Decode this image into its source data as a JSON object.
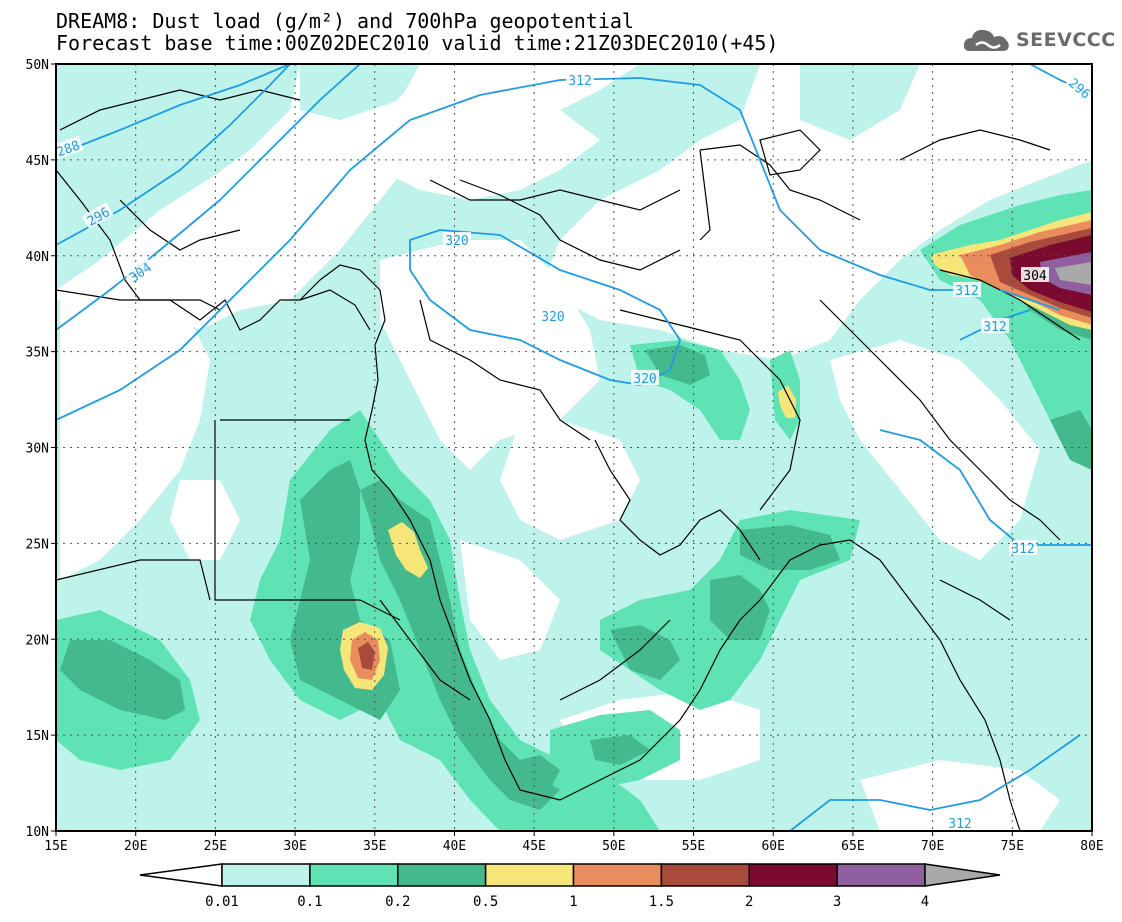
{
  "header": {
    "title_line1": "DREAM8: Dust load (g/m²) and 700hPa geopotential",
    "title_line2": "Forecast base time:00Z02DEC2010 valid time:21Z03DEC2010(+45)"
  },
  "logo": {
    "text": "SEEVCCC",
    "icon": "cloud-icon"
  },
  "map": {
    "lat_ticks": [
      "50N",
      "45N",
      "40N",
      "35N",
      "30N",
      "25N",
      "20N",
      "15N",
      "10N"
    ],
    "lon_ticks": [
      "15E",
      "20E",
      "25E",
      "30E",
      "35E",
      "40E",
      "45E",
      "50E",
      "55E",
      "60E",
      "65E",
      "70E",
      "75E",
      "80E"
    ],
    "contour_labels": [
      "312",
      "288",
      "296",
      "304",
      "320",
      "320",
      "320",
      "312",
      "312",
      "304",
      "312",
      "312",
      "296"
    ]
  },
  "colorbar": {
    "labels": [
      "0.01",
      "0.1",
      "0.2",
      "0.5",
      "1",
      "1.5",
      "2",
      "3",
      "4"
    ],
    "colors": [
      "#bdf3ea",
      "#5fe3b4",
      "#45b98e",
      "#f6e67a",
      "#e98c5e",
      "#a84a3c",
      "#7a0a2e",
      "#8f5fa0",
      "#a9a9a9"
    ]
  },
  "colors": {
    "coast": "#000000",
    "contour": "#1f9ce6",
    "grid": "#555555"
  }
}
